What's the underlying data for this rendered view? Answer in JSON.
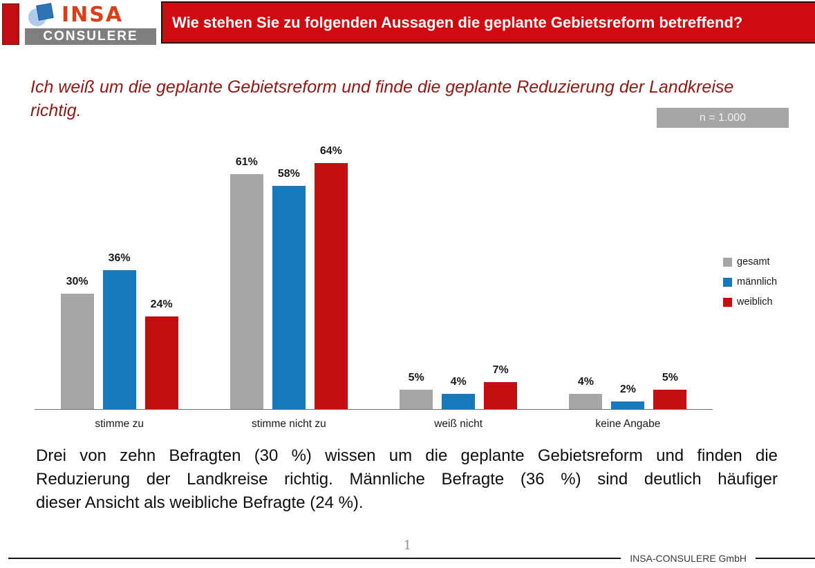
{
  "logo": {
    "brand": "INSA",
    "subbrand": "CONSULERE"
  },
  "header": {
    "title": "Wie stehen Sie zu folgenden Aussagen die geplante Gebietsreform betreffend?"
  },
  "statement": {
    "lines": [
      "Ich weiß um die geplante Gebietsreform und finde die geplante Reduzierung der Landkreise",
      "richtig."
    ]
  },
  "sample": {
    "label": "n = 1.000"
  },
  "chart_data": {
    "type": "bar",
    "title": "Ich weiß um die geplante Gebietsreform und finde die geplante Reduzierung der Landkreise richtig.",
    "sample_size": "n = 1.000",
    "categories": [
      "stimme zu",
      "stimme nicht zu",
      "weiß nicht",
      "keine Angabe"
    ],
    "series": [
      {
        "name": "gesamt",
        "color": "#A6A6A6",
        "values": [
          30,
          61,
          5,
          4
        ]
      },
      {
        "name": "männlich",
        "color": "#1878BE",
        "values": [
          36,
          58,
          4,
          2
        ]
      },
      {
        "name": "weiblich",
        "color": "#C30D10",
        "values": [
          24,
          64,
          7,
          5
        ]
      }
    ],
    "value_suffix": "%",
    "xlabel": "",
    "ylabel": "",
    "ylim": [
      0,
      70
    ],
    "grid": false,
    "data_labels": true,
    "legend_position": "right"
  },
  "commentary": {
    "lines": [
      "Drei von zehn Befragten (30 %) wissen um die geplante Gebietsreform und finden die",
      "Reduzierung der Landkreise richtig. Männliche Befragte (36 %) sind deutlich häufiger",
      "dieser Ansicht als weibliche Befragte (24 %)."
    ]
  },
  "footer": {
    "page_number": "1",
    "company": "INSA-CONSULERE GmbH"
  },
  "colors": {
    "banner_red": "#CF0A11",
    "statement_red": "#931713",
    "badge_gray": "#A6A6A6",
    "bar_gray": "#A6A6A6",
    "bar_blue": "#1878BE",
    "bar_red": "#C30D10"
  }
}
